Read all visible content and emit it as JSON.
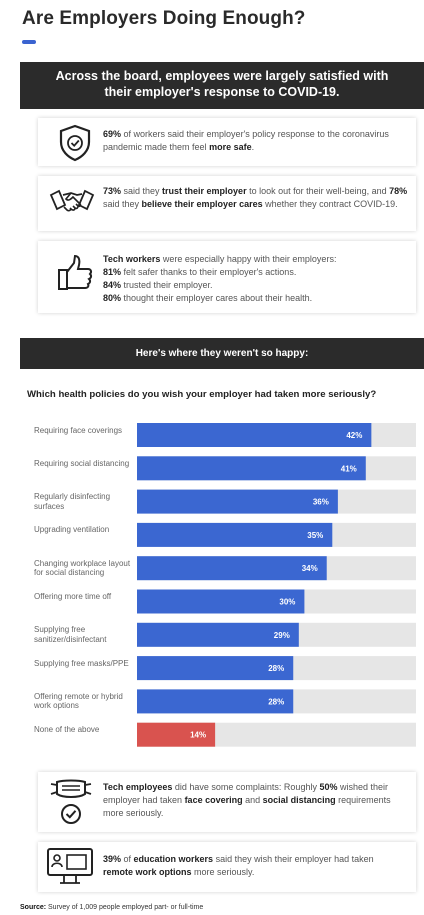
{
  "header": {
    "title": "Are Employers Doing Enough?"
  },
  "banner1": {
    "text": "Across the board, employees were largely satisfied with their employer's response to COVID-19."
  },
  "cards": {
    "safe": {
      "pct": "69%",
      "t1": " of workers said their employer's policy response to the coronavirus pandemic made them feel ",
      "strong": "more safe",
      "t2": "."
    },
    "trust": {
      "pct1": "73%",
      "t1": " said they ",
      "strong1": "trust their employer",
      "t2": " to look out for their well-being, and ",
      "pct2": "78%",
      "t3": " said they ",
      "strong2": "believe their employer cares",
      "t4": " whether they contract COVID-19."
    },
    "tech": {
      "strong": "Tech workers",
      "t1": " were especially happy with their employers:",
      "l1pct": "81%",
      "l1": " felt safer thanks to their employer's actions.",
      "l2pct": "84%",
      "l2": " trusted their employer.",
      "l3pct": "80%",
      "l3": " thought their employer cares about their health."
    }
  },
  "banner2": {
    "text": "Here's where they weren't so happy:"
  },
  "question": "Which health policies do you wish your employer had taken more seriously?",
  "colors": {
    "bar": "#3b67d1",
    "bar_none": "#d9534f",
    "track": "#e6e6e6"
  },
  "chart_data": {
    "type": "bar",
    "orientation": "horizontal",
    "title": "Which health policies do you wish your employer had taken more seriously?",
    "categories": [
      "Requiring face coverings",
      "Requiring social distancing",
      "Regularly disinfecting surfaces",
      "Upgrading ventilation",
      "Changing workplace layout for social distancing",
      "Offering more time off",
      "Supplying free sanitizer/disinfectant",
      "Supplying free masks/PPE",
      "Offering remote or hybrid work options",
      "None of the above"
    ],
    "values": [
      42,
      41,
      36,
      35,
      34,
      30,
      29,
      28,
      28,
      14
    ],
    "value_labels": [
      "42%",
      "41%",
      "36%",
      "35%",
      "34%",
      "30%",
      "29%",
      "28%",
      "28%",
      "14%"
    ],
    "xlim": [
      0,
      50
    ],
    "grid": false,
    "highlight": "None of the above"
  },
  "complaints": {
    "c1": {
      "s1": "Tech employees",
      "t1": " did have some complaints: Roughly ",
      "pct": "50%",
      "t2": " wished their employer had taken ",
      "s2": "face covering",
      "t3": " and ",
      "s3": "social distancing",
      "t4": " requirements more seriously."
    },
    "c2": {
      "pct": "39%",
      "t1": " of ",
      "s1": "education workers",
      "t2": " said they wish their employer had taken ",
      "s2": "remote work options",
      "t3": " more seriously."
    }
  },
  "source": {
    "label": "Source:",
    "text": " Survey of 1,009 people employed part- or full-time"
  }
}
